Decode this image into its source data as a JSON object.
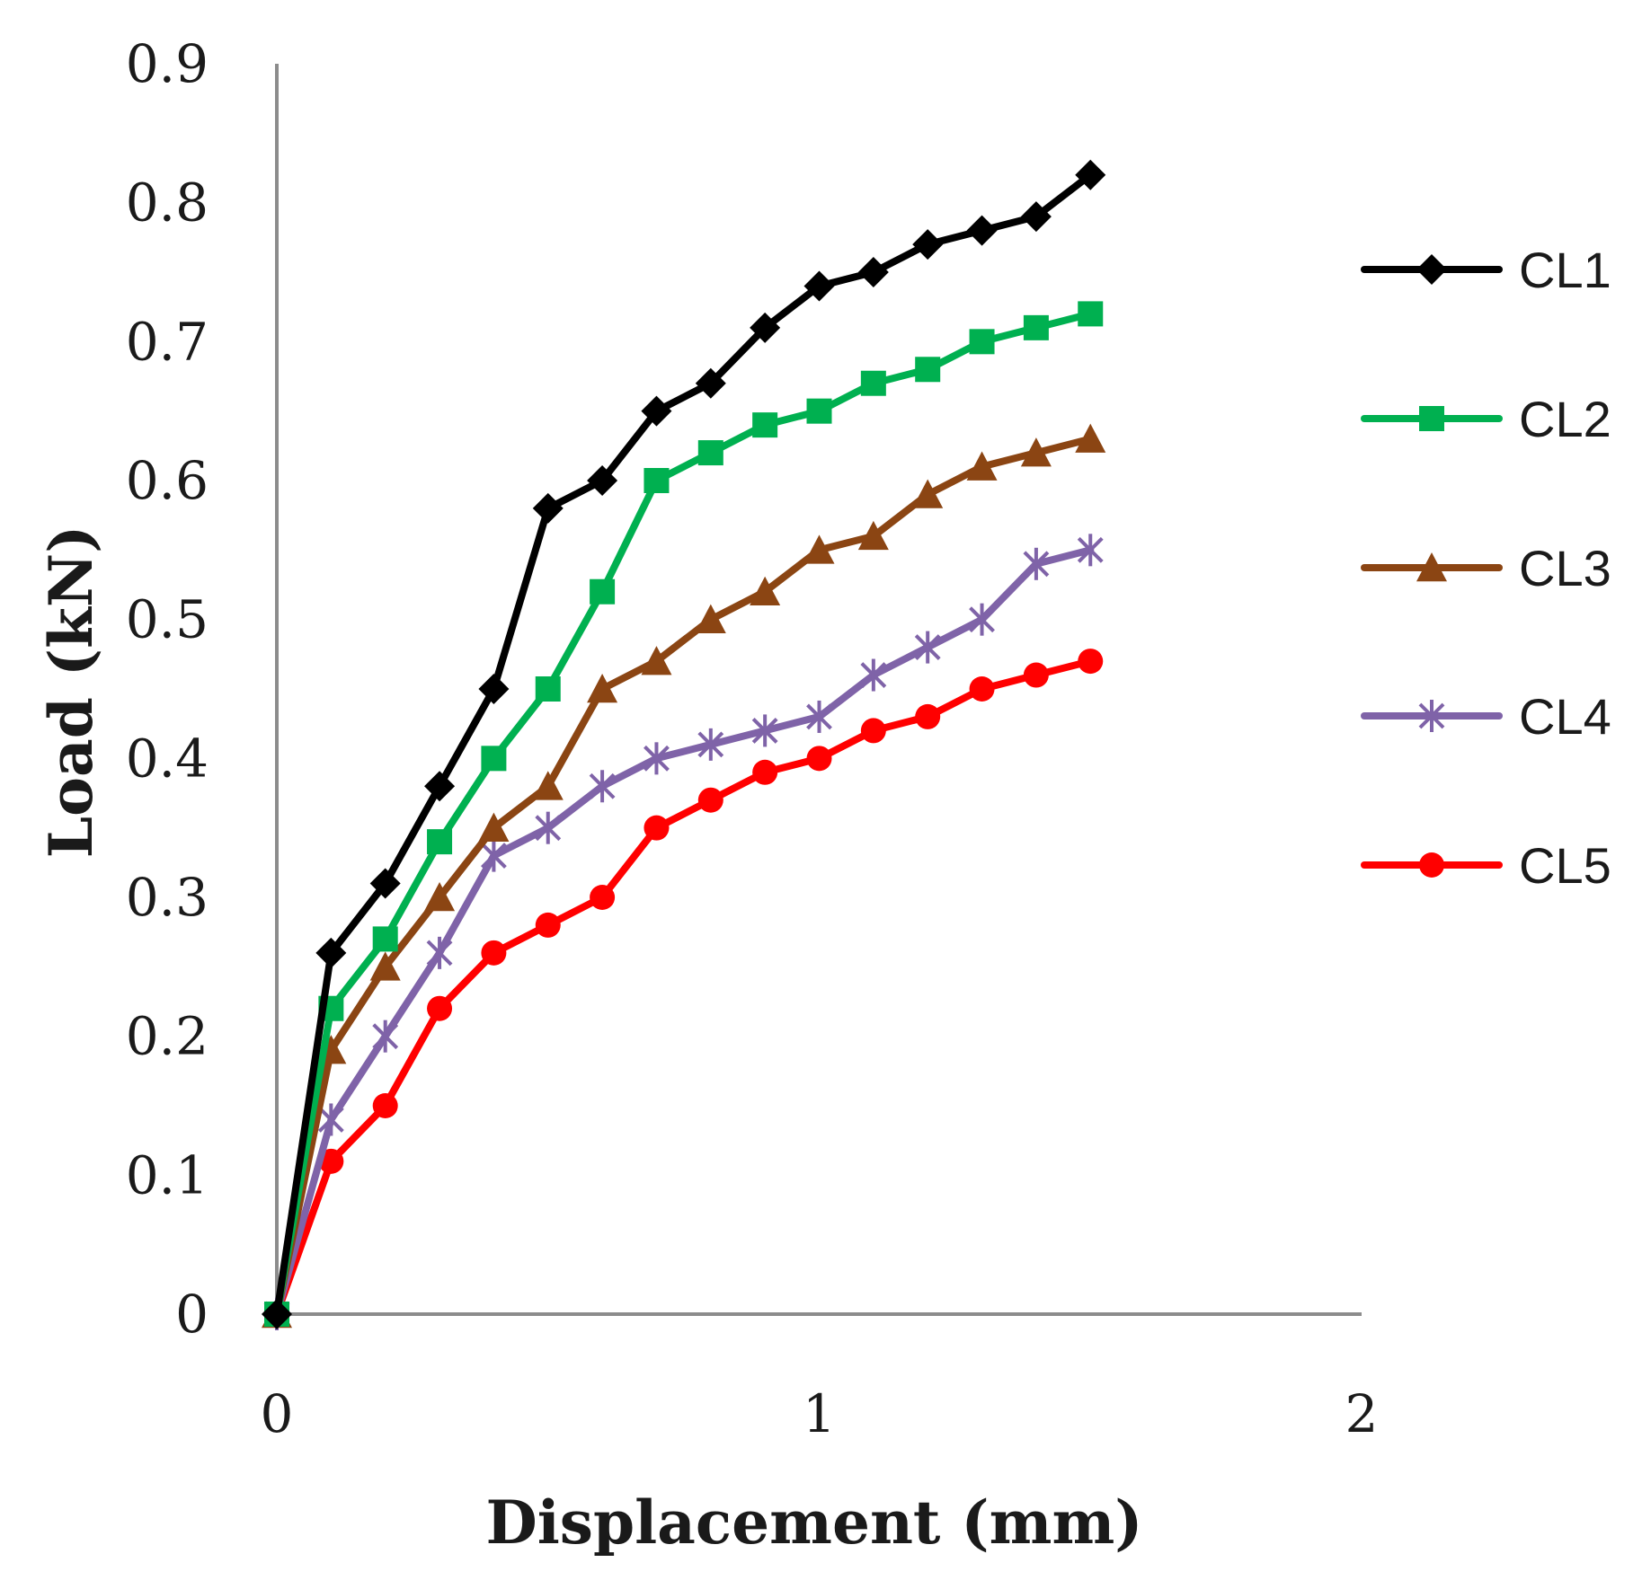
{
  "chart_data": {
    "type": "line",
    "title": "",
    "xlabel": "Displacement (mm)",
    "ylabel": "Load (kN)",
    "xlim": [
      0,
      2
    ],
    "ylim": [
      0,
      0.9
    ],
    "x_ticks": [
      "0",
      "1",
      "2"
    ],
    "y_ticks": [
      "0",
      "0.1",
      "0.2",
      "0.3",
      "0.4",
      "0.5",
      "0.6",
      "0.7",
      "0.8",
      "0.9"
    ],
    "grid": false,
    "legend_position": "right",
    "x": [
      0,
      0.1,
      0.2,
      0.3,
      0.4,
      0.5,
      0.6,
      0.7,
      0.8,
      0.9,
      1.0,
      1.1,
      1.2,
      1.3,
      1.4,
      1.5
    ],
    "series": [
      {
        "name": "CL1",
        "color": "#000000",
        "marker": "diamond",
        "values": [
          0,
          0.26,
          0.31,
          0.38,
          0.45,
          0.58,
          0.6,
          0.65,
          0.67,
          0.71,
          0.74,
          0.75,
          0.77,
          0.78,
          0.79,
          0.82
        ]
      },
      {
        "name": "CL2",
        "color": "#00b050",
        "marker": "square",
        "values": [
          0,
          0.22,
          0.27,
          0.34,
          0.4,
          0.45,
          0.52,
          0.6,
          0.62,
          0.64,
          0.65,
          0.67,
          0.68,
          0.7,
          0.71,
          0.72
        ]
      },
      {
        "name": "CL3",
        "color": "#8b4513",
        "marker": "triangle",
        "values": [
          0,
          0.19,
          0.25,
          0.3,
          0.35,
          0.38,
          0.45,
          0.47,
          0.5,
          0.52,
          0.55,
          0.56,
          0.59,
          0.61,
          0.62,
          0.63
        ]
      },
      {
        "name": "CL4",
        "color": "#7f63a8",
        "marker": "star",
        "values": [
          0,
          0.14,
          0.2,
          0.26,
          0.33,
          0.35,
          0.38,
          0.4,
          0.41,
          0.42,
          0.43,
          0.46,
          0.48,
          0.5,
          0.54,
          0.55
        ]
      },
      {
        "name": "CL5",
        "color": "#ff0000",
        "marker": "circle",
        "values": [
          0,
          0.11,
          0.15,
          0.22,
          0.26,
          0.28,
          0.3,
          0.35,
          0.37,
          0.39,
          0.4,
          0.42,
          0.43,
          0.45,
          0.46,
          0.47
        ]
      }
    ]
  }
}
